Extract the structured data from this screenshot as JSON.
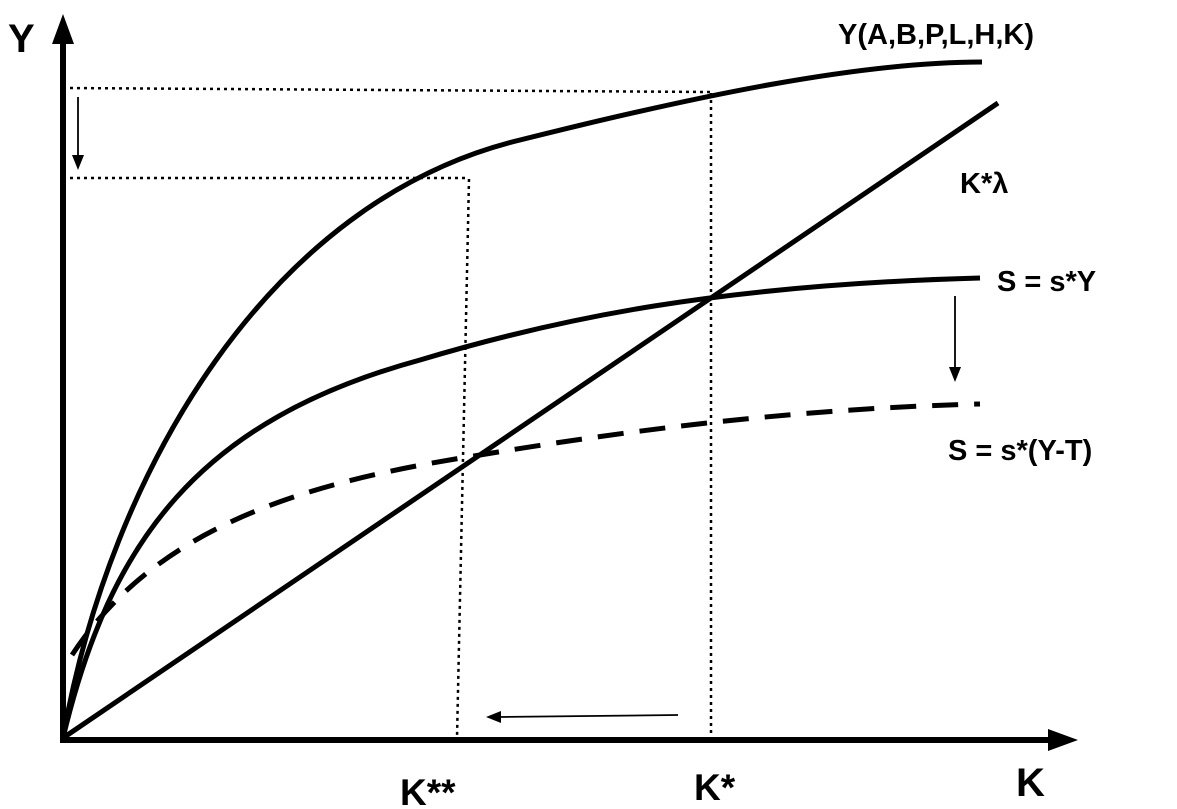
{
  "axes": {
    "y_label": "Y",
    "x_label": "K"
  },
  "curves": {
    "production": "Y(A,B,P,L,H,K)",
    "depreciation": "K*λ",
    "savings": "S = s*Y",
    "savings_taxed": "S = s*(Y-T)"
  },
  "ticks": {
    "k_double_star": "K**",
    "k_star": "K*"
  }
}
